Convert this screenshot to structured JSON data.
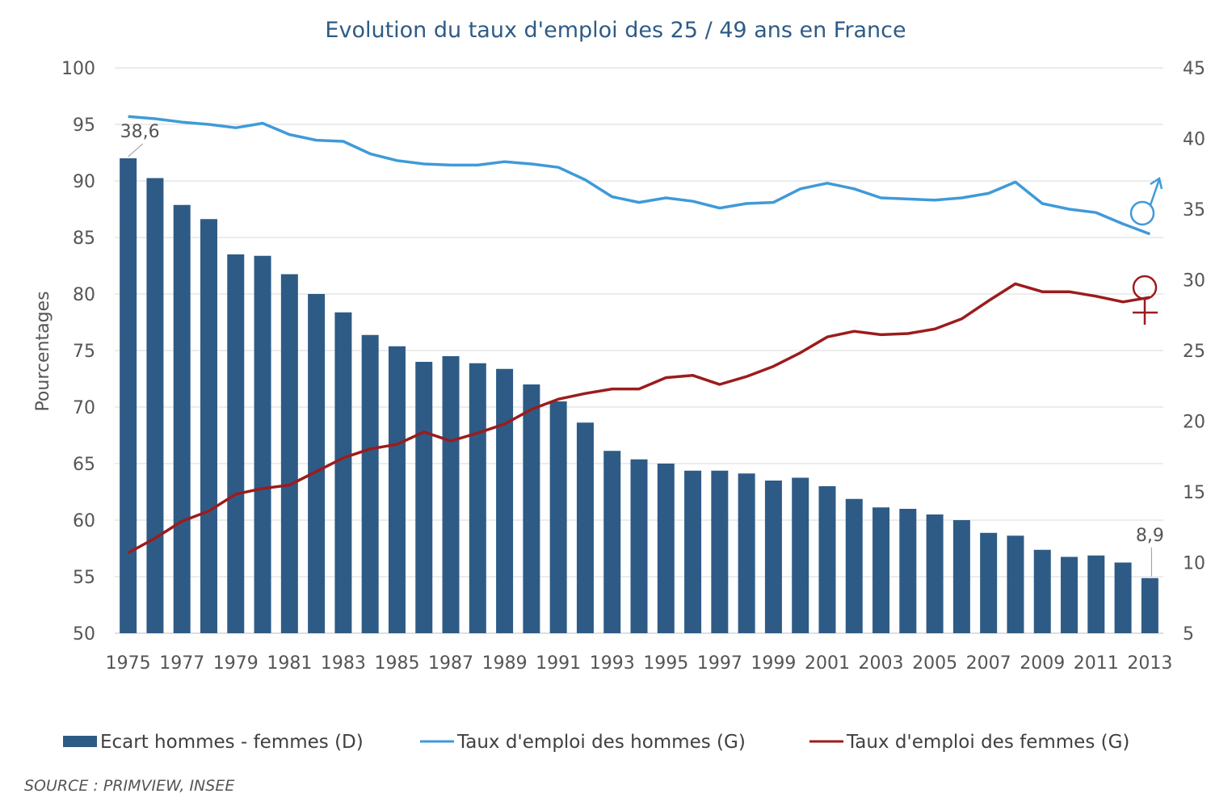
{
  "chart_data": {
    "type": "bar",
    "title": "Evolution du taux d'emploi des 25 / 49 ans en France",
    "ylabel": "Pourcentages",
    "y_left": {
      "min": 50,
      "max": 100,
      "step": 5,
      "ticks": [
        "100",
        "95",
        "90",
        "85",
        "80",
        "75",
        "70",
        "65",
        "60",
        "55",
        "50"
      ]
    },
    "y_right": {
      "min": 5,
      "max": 45,
      "step": 5,
      "ticks": [
        "45",
        "40",
        "35",
        "30",
        "25",
        "20",
        "15",
        "10",
        "5"
      ]
    },
    "categories": [
      "1975",
      "1976",
      "1977",
      "1978",
      "1979",
      "1980",
      "1981",
      "1982",
      "1983",
      "1984",
      "1985",
      "1986",
      "1987",
      "1988",
      "1989",
      "1990",
      "1991",
      "1992",
      "1993",
      "1994",
      "1995",
      "1996",
      "1997",
      "1998",
      "1999",
      "2000",
      "2001",
      "2002",
      "2003",
      "2004",
      "2005",
      "2006",
      "2007",
      "2008",
      "2009",
      "2010",
      "2011",
      "2012",
      "2013"
    ],
    "x_tick_labels": [
      "1975",
      "1977",
      "1979",
      "1981",
      "1983",
      "1985",
      "1987",
      "1989",
      "1991",
      "1993",
      "1995",
      "1997",
      "1999",
      "2001",
      "2003",
      "2005",
      "2007",
      "2009",
      "2011",
      "2013"
    ],
    "grid": true,
    "legend_position": "bottom",
    "series": [
      {
        "name": "Ecart hommes - femmes (D)",
        "kind": "bar",
        "axis": "right",
        "color": "#2e5b86",
        "values": [
          38.6,
          37.2,
          35.3,
          34.3,
          31.8,
          31.7,
          30.4,
          29.0,
          27.7,
          26.1,
          25.3,
          24.2,
          24.6,
          24.1,
          23.7,
          22.6,
          21.4,
          19.9,
          17.9,
          17.3,
          17.0,
          16.5,
          16.5,
          16.3,
          15.8,
          16.0,
          15.4,
          14.5,
          13.9,
          13.8,
          13.4,
          13.0,
          12.1,
          11.9,
          10.9,
          10.4,
          10.5,
          10.0,
          8.9
        ]
      },
      {
        "name": "Taux d'emploi des hommes (G)",
        "kind": "line",
        "axis": "left",
        "color": "#3f9ad8",
        "values": [
          95.7,
          95.5,
          95.2,
          95.0,
          94.7,
          95.1,
          94.1,
          93.6,
          93.5,
          92.4,
          91.8,
          91.5,
          91.4,
          91.4,
          91.7,
          91.5,
          91.2,
          90.1,
          88.6,
          88.1,
          88.5,
          88.2,
          87.6,
          88.0,
          88.1,
          89.3,
          89.8,
          89.3,
          88.5,
          88.4,
          88.3,
          88.5,
          88.9,
          89.9,
          88.0,
          87.5,
          87.2,
          86.2,
          85.3
        ]
      },
      {
        "name": "Taux d'emploi des femmes (G)",
        "kind": "line",
        "axis": "left",
        "color": "#9b1c1c",
        "values": [
          57.1,
          58.4,
          59.9,
          60.8,
          62.3,
          62.8,
          63.1,
          64.3,
          65.5,
          66.3,
          66.7,
          67.8,
          67.0,
          67.7,
          68.5,
          69.8,
          70.7,
          71.2,
          71.6,
          71.6,
          72.6,
          72.8,
          72.0,
          72.7,
          73.6,
          74.8,
          76.2,
          76.7,
          76.4,
          76.5,
          76.9,
          77.8,
          79.4,
          80.9,
          80.2,
          80.2,
          79.8,
          79.3,
          79.7
        ]
      }
    ],
    "annotations": [
      {
        "text": "38,6",
        "category": "1975",
        "series": "Ecart hommes - femmes (D)"
      },
      {
        "text": "8,9",
        "category": "2013",
        "series": "Ecart hommes - femmes (D)"
      }
    ],
    "symbols": [
      {
        "name": "male-symbol",
        "color": "#3f9ad8"
      },
      {
        "name": "female-symbol",
        "color": "#9b1c1c"
      }
    ],
    "source": "SOURCE : PRIMVIEW, INSEE"
  }
}
